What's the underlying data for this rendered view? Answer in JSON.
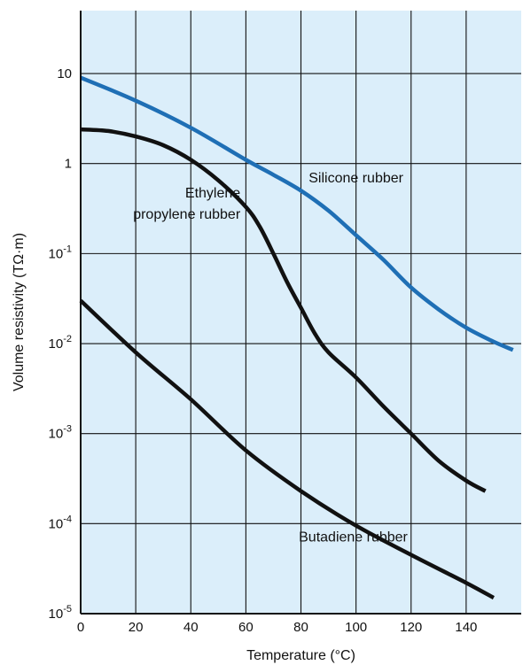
{
  "chart_data": {
    "type": "line",
    "xlabel": "Temperature (°C)",
    "ylabel": "Volume resistivity (TΩ·m)",
    "xlim": [
      0,
      160
    ],
    "ylim": [
      1e-05,
      50
    ],
    "y_scale": "log",
    "grid": true,
    "x_ticks": [
      {
        "value": 0,
        "label": "0"
      },
      {
        "value": 20,
        "label": "20"
      },
      {
        "value": 40,
        "label": "40"
      },
      {
        "value": 60,
        "label": "60"
      },
      {
        "value": 80,
        "label": "80"
      },
      {
        "value": 100,
        "label": "100"
      },
      {
        "value": 120,
        "label": "120"
      },
      {
        "value": 140,
        "label": "140"
      }
    ],
    "y_ticks": [
      {
        "value": 10,
        "base": "10",
        "exp": ""
      },
      {
        "value": 1,
        "base": "1",
        "exp": ""
      },
      {
        "value": 0.1,
        "base": "10",
        "exp": "-1"
      },
      {
        "value": 0.01,
        "base": "10",
        "exp": "-2"
      },
      {
        "value": 0.001,
        "base": "10",
        "exp": "-3"
      },
      {
        "value": 0.0001,
        "base": "10",
        "exp": "-4"
      },
      {
        "value": 1e-05,
        "base": "10",
        "exp": "-5"
      }
    ],
    "series": [
      {
        "name": "Silicone rubber",
        "color": "#1f6fb5",
        "x": [
          0,
          20,
          40,
          60,
          70,
          80,
          90,
          100,
          110,
          120,
          130,
          140,
          150,
          157
        ],
        "y": [
          9,
          5,
          2.5,
          1.1,
          0.75,
          0.5,
          0.3,
          0.16,
          0.085,
          0.042,
          0.024,
          0.015,
          0.0105,
          0.0085
        ]
      },
      {
        "name": "Ethylene propylene rubber",
        "color": "#111111",
        "x": [
          0,
          10,
          20,
          30,
          40,
          50,
          60,
          65,
          70,
          75,
          80,
          85,
          90,
          100,
          110,
          120,
          130,
          140,
          147
        ],
        "y": [
          2.4,
          2.3,
          2.0,
          1.6,
          1.1,
          0.65,
          0.33,
          0.2,
          0.1,
          0.048,
          0.025,
          0.013,
          0.008,
          0.0042,
          0.002,
          0.001,
          0.0005,
          0.0003,
          0.00023
        ]
      },
      {
        "name": "Butadiene rubber",
        "color": "#111111",
        "x": [
          0,
          20,
          40,
          60,
          80,
          100,
          120,
          140,
          150
        ],
        "y": [
          0.03,
          0.008,
          0.0024,
          0.00065,
          0.00023,
          9.5e-05,
          4.5e-05,
          2.2e-05,
          1.5e-05
        ]
      }
    ],
    "annotations": [
      {
        "name": "silicone-label",
        "lines": [
          "Silicone rubber"
        ],
        "x": 100,
        "y": 0.62,
        "anchor": "middle",
        "line_gap": 0
      },
      {
        "name": "epr-label",
        "lines": [
          "Ethylene",
          "propylene rubber"
        ],
        "x": 58,
        "y": 0.42,
        "anchor": "end",
        "line_gap": 24
      },
      {
        "name": "butadiene-label",
        "lines": [
          "Butadiene rubber"
        ],
        "x": 99,
        "y": 6.3e-05,
        "anchor": "middle",
        "line_gap": 0
      }
    ]
  }
}
